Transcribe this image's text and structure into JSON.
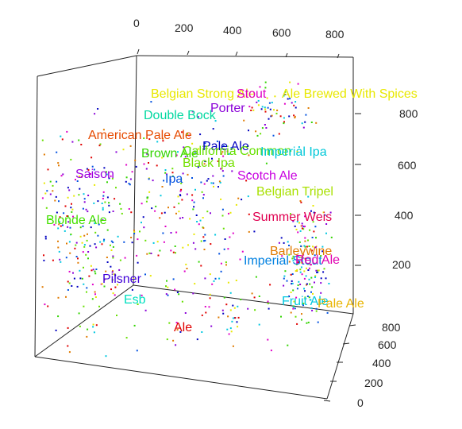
{
  "chart_data": {
    "type": "scatter3d",
    "title": "",
    "x_axis": {
      "label": "",
      "ticks": [
        "0",
        "200",
        "400",
        "600",
        "800"
      ],
      "range": [
        0,
        900
      ]
    },
    "y_axis": {
      "label": "",
      "ticks": [
        "0",
        "200",
        "400",
        "600",
        "800"
      ],
      "range": [
        0,
        900
      ]
    },
    "z_axis": {
      "label": "",
      "ticks": [
        "200",
        "400",
        "600",
        "800"
      ],
      "range": [
        0,
        900
      ]
    },
    "box": true,
    "grid": false,
    "legend": "none",
    "styles": [
      {
        "name": "Belgian Strong Ale",
        "color": "#e8e800"
      },
      {
        "name": "Stout",
        "color": "#e000c8"
      },
      {
        "name": "Ale Brewed With Spices",
        "color": "#e8e800"
      },
      {
        "name": "Porter",
        "color": "#8a00d8"
      },
      {
        "name": "Double Bock",
        "color": "#00d8a0"
      },
      {
        "name": "American Pale Ale",
        "color": "#e64a00"
      },
      {
        "name": "Pale Ale",
        "color": "#0000c0"
      },
      {
        "name": "Brown Ale",
        "color": "#32d400"
      },
      {
        "name": "California Common",
        "color": "#66e000"
      },
      {
        "name": "Imperial Ipa",
        "color": "#00c8d8"
      },
      {
        "name": "Black Ipa",
        "color": "#74e000"
      },
      {
        "name": "Saison",
        "color": "#9a00e0"
      },
      {
        "name": "Ipa",
        "color": "#0050e0"
      },
      {
        "name": "Scotch Ale",
        "color": "#c800e0"
      },
      {
        "name": "Belgian Tripel",
        "color": "#a8e000"
      },
      {
        "name": "Summer Weis",
        "color": "#e00050"
      },
      {
        "name": "Blonde Ale",
        "color": "#44e000"
      },
      {
        "name": "Barleywine",
        "color": "#e07a00"
      },
      {
        "name": "Imperial Stout",
        "color": "#0080e0"
      },
      {
        "name": "Red Ale",
        "color": "#e000b0"
      },
      {
        "name": "Pilsner",
        "color": "#4000d8"
      },
      {
        "name": "Esb",
        "color": "#00e0c0"
      },
      {
        "name": "Fruit Ale",
        "color": "#00c8e0"
      },
      {
        "name": "Pale Ale",
        "color": "#e8b400"
      },
      {
        "name": "Ale",
        "color": "#e00000"
      }
    ],
    "point_colors": [
      "#0000c0",
      "#0050e0",
      "#00c8e0",
      "#32d400",
      "#66e000",
      "#e000c8",
      "#e00000",
      "#8a00d8",
      "#e8e800",
      "#e07a00"
    ]
  }
}
